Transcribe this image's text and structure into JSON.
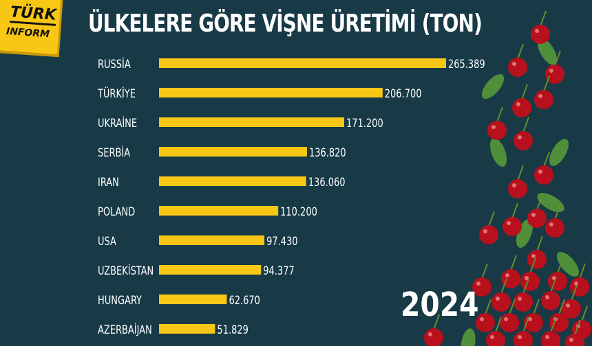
{
  "logo": {
    "line1": "TÜRK",
    "line2": "INFORM"
  },
  "chart_data": {
    "type": "bar",
    "orientation": "horizontal",
    "title": "ÜLKELERE GÖRE VİŞNE ÜRETİMİ (TON)",
    "categories": [
      "RUSSİA",
      "TÜRKİYE",
      "UKRAİNE",
      "SERBİA",
      "IRAN",
      "POLAND",
      "USA",
      "UZBEKİSTAN",
      "HUNGARY",
      "AZERBAİJAN"
    ],
    "values": [
      265389,
      206700,
      171200,
      136820,
      136060,
      110200,
      97430,
      94377,
      62670,
      51829
    ],
    "value_labels": [
      "265.389",
      "206.700",
      "171.200",
      "136.820",
      "136.060",
      "110.200",
      "97.430",
      "94.377",
      "62.670",
      "51.829"
    ],
    "grid": false,
    "bar_color": "#f8c614",
    "year": "2024"
  },
  "colors": {
    "background": "#173a46",
    "bar": "#f8c614",
    "cherry": "#b8101c",
    "leaf": "#4f8f3a"
  }
}
